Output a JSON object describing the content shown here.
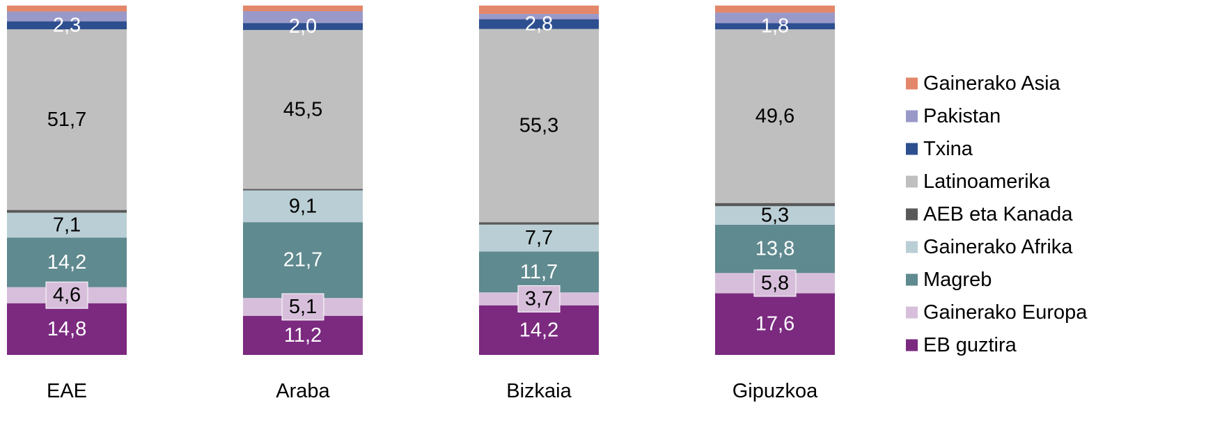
{
  "chart_data": {
    "type": "bar",
    "stacked": true,
    "percent_stacked": true,
    "categories": [
      "EAE",
      "Araba",
      "Bizkaia",
      "Gipuzkoa"
    ],
    "ylim": [
      0,
      100
    ],
    "grid": false,
    "legend_position": "right",
    "series": [
      {
        "name": "EB guztira",
        "color": "#7B2A80",
        "label_color": "#ffffff",
        "values": [
          14.8,
          11.2,
          14.2,
          17.6
        ],
        "labels": [
          "14,8",
          "11,2",
          "14,2",
          "17,6"
        ]
      },
      {
        "name": "Gainerako Europa",
        "color": "#D7BFDB",
        "label_color": "#000000",
        "label_box": true,
        "values": [
          4.6,
          5.1,
          3.7,
          5.8
        ],
        "labels": [
          "4,6",
          "5,1",
          "3,7",
          "5,8"
        ]
      },
      {
        "name": "Magreb",
        "color": "#5F8A8F",
        "label_color": "#ffffff",
        "values": [
          14.2,
          21.7,
          11.7,
          13.8
        ],
        "labels": [
          "14,2",
          "21,7",
          "11,7",
          "13,8"
        ]
      },
      {
        "name": "Gainerako Afrika",
        "color": "#BACED5",
        "label_color": "#000000",
        "values": [
          7.1,
          9.1,
          7.7,
          5.3
        ],
        "labels": [
          "7,1",
          "9,1",
          "7,7",
          "5,3"
        ]
      },
      {
        "name": "AEB eta Kanada",
        "color": "#595959",
        "label_color": null,
        "values": [
          0.8,
          0.4,
          0.7,
          0.9
        ],
        "labels": [
          null,
          null,
          null,
          null
        ]
      },
      {
        "name": "Latinoamerika",
        "color": "#BFBFBF",
        "label_color": "#000000",
        "values": [
          51.7,
          45.5,
          55.3,
          49.6
        ],
        "labels": [
          "51,7",
          "45,5",
          "55,3",
          "49,6"
        ]
      },
      {
        "name": "Txina",
        "color": "#2E4F8F",
        "label_color": "#ffffff",
        "values": [
          2.3,
          2.0,
          2.8,
          1.8
        ],
        "labels": [
          "2,3",
          "2,0",
          "2,8",
          "1,8"
        ]
      },
      {
        "name": "Pakistan",
        "color": "#9999C9",
        "label_color": null,
        "values": [
          2.8,
          3.4,
          1.5,
          3.0
        ],
        "labels": [
          null,
          null,
          null,
          null
        ]
      },
      {
        "name": "Gainerako Asia",
        "color": "#E3876A",
        "label_color": null,
        "values": [
          1.7,
          1.6,
          2.4,
          2.0
        ],
        "labels": [
          null,
          null,
          null,
          null
        ]
      }
    ]
  }
}
